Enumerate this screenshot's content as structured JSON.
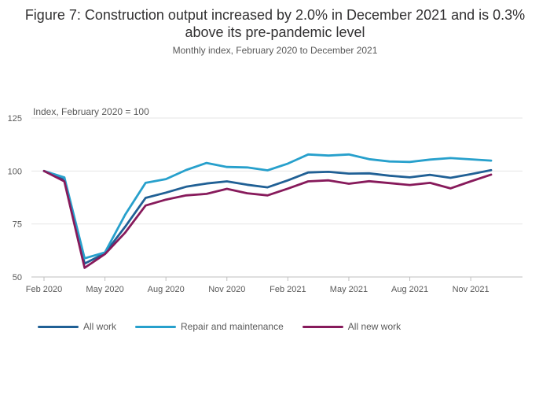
{
  "chart_data": {
    "type": "line",
    "title": "Figure 7: Construction output increased by 2.0% in December 2021 and is 0.3% above its pre-pandemic level",
    "subtitle": "Monthly index, February 2020 to December 2021",
    "ylabel": "Index, February 2020 = 100",
    "xlabel": "",
    "ylim": [
      50,
      125
    ],
    "yticks": [
      "50",
      "75",
      "100",
      "125"
    ],
    "yticks_values": [
      50,
      75,
      100,
      125
    ],
    "x": [
      "Feb 2020",
      "Mar 2020",
      "Apr 2020",
      "May 2020",
      "Jun 2020",
      "Jul 2020",
      "Aug 2020",
      "Sep 2020",
      "Oct 2020",
      "Nov 2020",
      "Dec 2020",
      "Jan 2021",
      "Feb 2021",
      "Mar 2021",
      "Apr 2021",
      "May 2021",
      "Jun 2021",
      "Jul 2021",
      "Aug 2021",
      "Sep 2021",
      "Oct 2021",
      "Nov 2021",
      "Dec 2021"
    ],
    "xticks": [
      {
        "index": 0,
        "label": "Feb 2020"
      },
      {
        "index": 3,
        "label": "May 2020"
      },
      {
        "index": 6,
        "label": "Aug 2020"
      },
      {
        "index": 9,
        "label": "Nov 2020"
      },
      {
        "index": 12,
        "label": "Feb 2021"
      },
      {
        "index": 15,
        "label": "May 2021"
      },
      {
        "index": 18,
        "label": "Aug 2021"
      },
      {
        "index": 21,
        "label": "Nov 2021"
      }
    ],
    "series": [
      {
        "name": "All work",
        "color": "#206095",
        "values": [
          100,
          95.8,
          56.3,
          61.2,
          73.8,
          87.3,
          89.8,
          92.6,
          94.1,
          95.1,
          93.5,
          92.3,
          95.6,
          99.3,
          99.6,
          98.8,
          98.9,
          97.8,
          97.0,
          98.2,
          96.8,
          98.5,
          100.4
        ]
      },
      {
        "name": "Repair and maintenance",
        "color": "#27A0CC",
        "values": [
          100,
          97.0,
          58.8,
          61.6,
          79.5,
          94.4,
          96.2,
          100.5,
          103.8,
          101.9,
          101.7,
          100.3,
          103.5,
          107.8,
          107.3,
          107.8,
          105.6,
          104.5,
          104.3,
          105.4,
          106.1,
          105.5,
          104.9
        ]
      },
      {
        "name": "All new work",
        "color": "#871A5B",
        "values": [
          100,
          95.1,
          54.3,
          60.8,
          71.0,
          83.7,
          86.5,
          88.5,
          89.2,
          91.6,
          89.5,
          88.5,
          91.7,
          95.1,
          95.6,
          94.0,
          95.2,
          94.3,
          93.4,
          94.4,
          91.8,
          95.1,
          98.3
        ]
      }
    ]
  }
}
